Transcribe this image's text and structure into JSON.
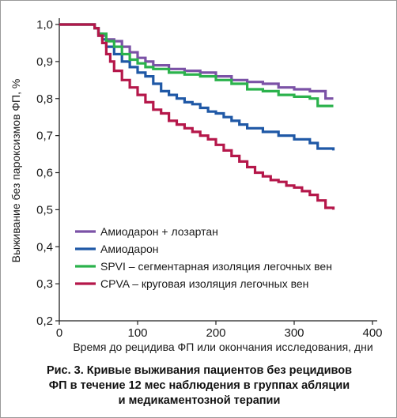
{
  "chart_data": {
    "type": "line",
    "title": "",
    "xlabel": "Время до рецидива ФП или окончания исследования, дни",
    "ylabel": "Выживание без пароксизмов ФП, %",
    "xlim": [
      0,
      400
    ],
    "ylim": [
      0.2,
      1.0
    ],
    "x_ticks": [
      "0",
      "100",
      "200",
      "300",
      "400"
    ],
    "y_ticks": [
      "0,2",
      "0,3",
      "0,4",
      "0,5",
      "0,6",
      "0,7",
      "0,8",
      "0,9",
      "1,0"
    ],
    "x_tick_values": [
      0,
      100,
      200,
      300,
      400
    ],
    "y_tick_values": [
      0.2,
      0.3,
      0.4,
      0.5,
      0.6,
      0.7,
      0.8,
      0.9,
      1.0
    ],
    "grid": false,
    "legend_position": "bottom-left",
    "series": [
      {
        "name": "Амиодарон + лозартан",
        "color": "#7b52a6",
        "x": [
          0,
          40,
          45,
          50,
          60,
          70,
          80,
          90,
          100,
          110,
          120,
          140,
          160,
          180,
          200,
          220,
          240,
          260,
          280,
          300,
          320,
          340,
          350
        ],
        "y": [
          1.0,
          1.0,
          0.99,
          0.97,
          0.96,
          0.955,
          0.94,
          0.925,
          0.91,
          0.9,
          0.89,
          0.88,
          0.875,
          0.87,
          0.86,
          0.85,
          0.845,
          0.84,
          0.83,
          0.825,
          0.82,
          0.8,
          0.8
        ]
      },
      {
        "name": "Амиодарон",
        "color": "#1f58a6",
        "x": [
          0,
          40,
          45,
          50,
          55,
          60,
          70,
          80,
          90,
          100,
          110,
          120,
          130,
          140,
          150,
          160,
          170,
          180,
          190,
          200,
          210,
          220,
          230,
          240,
          260,
          280,
          300,
          320,
          330,
          350
        ],
        "y": [
          1.0,
          1.0,
          0.99,
          0.975,
          0.96,
          0.94,
          0.92,
          0.9,
          0.885,
          0.87,
          0.86,
          0.84,
          0.82,
          0.81,
          0.8,
          0.79,
          0.785,
          0.775,
          0.765,
          0.76,
          0.75,
          0.74,
          0.73,
          0.72,
          0.71,
          0.7,
          0.69,
          0.68,
          0.665,
          0.66
        ]
      },
      {
        "name": "SPVI – сегментарная изоляция легочных вен",
        "color": "#2bb24c",
        "x": [
          0,
          40,
          45,
          50,
          60,
          70,
          80,
          90,
          100,
          110,
          120,
          140,
          160,
          180,
          200,
          220,
          240,
          260,
          280,
          300,
          320,
          330,
          350
        ],
        "y": [
          1.0,
          1.0,
          0.99,
          0.975,
          0.955,
          0.94,
          0.92,
          0.905,
          0.895,
          0.885,
          0.88,
          0.87,
          0.865,
          0.86,
          0.85,
          0.84,
          0.825,
          0.82,
          0.81,
          0.805,
          0.8,
          0.78,
          0.78
        ]
      },
      {
        "name": "CPVA – круговая изоляция легочных вен",
        "color": "#b5174a",
        "x": [
          0,
          40,
          45,
          50,
          55,
          60,
          65,
          70,
          80,
          90,
          100,
          110,
          120,
          130,
          140,
          150,
          160,
          170,
          180,
          190,
          200,
          210,
          220,
          230,
          240,
          250,
          260,
          270,
          280,
          290,
          300,
          310,
          320,
          330,
          340,
          350
        ],
        "y": [
          1.0,
          1.0,
          0.99,
          0.97,
          0.95,
          0.92,
          0.9,
          0.875,
          0.85,
          0.83,
          0.81,
          0.79,
          0.77,
          0.76,
          0.74,
          0.73,
          0.72,
          0.71,
          0.7,
          0.69,
          0.675,
          0.66,
          0.645,
          0.63,
          0.615,
          0.6,
          0.59,
          0.58,
          0.575,
          0.565,
          0.56,
          0.55,
          0.54,
          0.525,
          0.505,
          0.5
        ]
      }
    ]
  },
  "caption": {
    "line1": "Рис. 3. Кривые выживания пациентов без рецидивов",
    "line2": "ФП в течение 12 мес наблюдения в группах абляции",
    "line3": "и медикаментозной терапии"
  }
}
